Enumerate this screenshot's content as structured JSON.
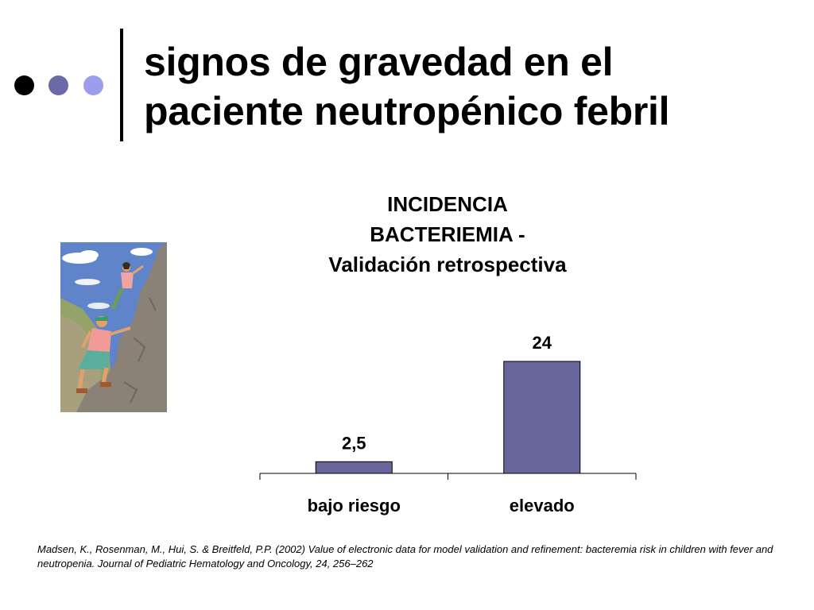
{
  "slide": {
    "title_lines": [
      "signos de gravedad en el",
      "paciente neutropénico febril"
    ],
    "citation": "Madsen, K., Rosenman, M., Hui, S. & Breitfeld, P.P. (2002) Value of electronic data for model validation and refinement: bacteremia risk in children with fever and neutropenia. Journal of Pediatric Hematology and Oncology, 24, 256–262",
    "dot_colors": [
      "#000000",
      "#6a6aa8",
      "#9d9df0"
    ]
  },
  "chart_data": {
    "type": "bar",
    "title_lines": [
      "INCIDENCIA",
      "BACTERIEMIA -",
      "Validación retrospectiva"
    ],
    "categories": [
      "bajo riesgo",
      "elevado"
    ],
    "values": [
      2.5,
      24
    ],
    "value_labels": [
      "2,5",
      "24"
    ],
    "ylim": [
      0,
      24
    ],
    "bar_color": "#66669a",
    "grid": false,
    "legend": false
  }
}
